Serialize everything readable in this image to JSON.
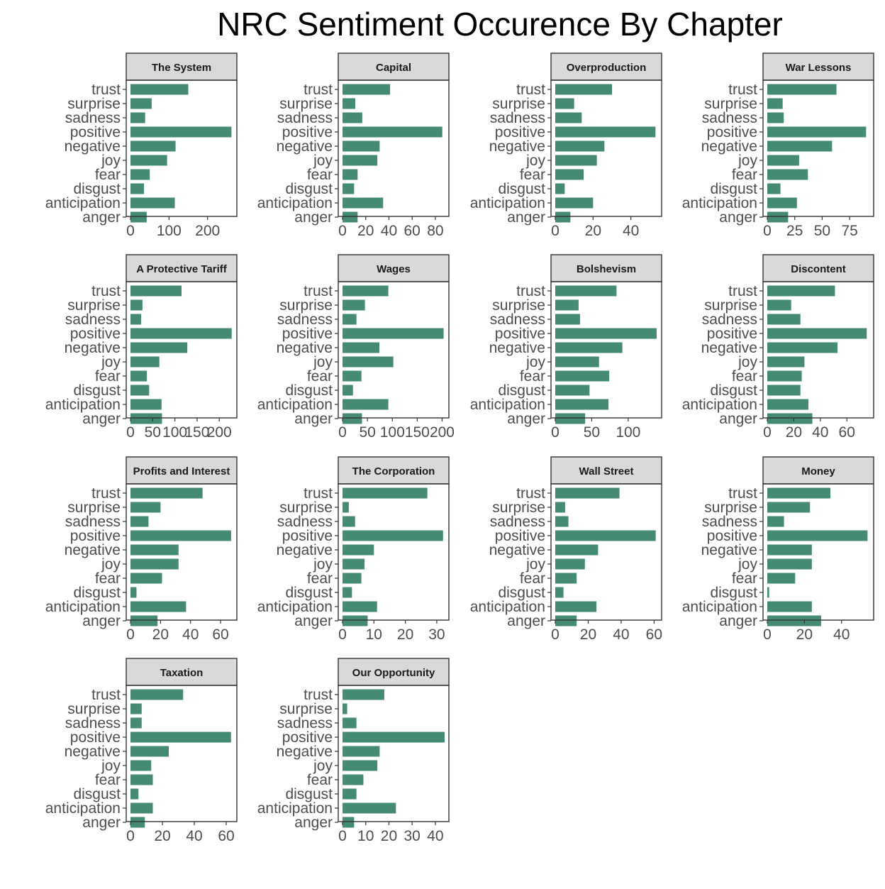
{
  "title": "NRC Sentiment Occurence By Chapter",
  "colors": {
    "bar": "#458b74",
    "strip": "#d9d9d9",
    "axis_text": "#4d4d4d",
    "frame": "#333333"
  },
  "chart_data": {
    "type": "bar",
    "orientation": "horizontal",
    "grid": false,
    "legend": "none",
    "title": "NRC Sentiment Occurence By Chapter",
    "categories": [
      "trust",
      "surprise",
      "sadness",
      "positive",
      "negative",
      "joy",
      "fear",
      "disgust",
      "anticipation",
      "anger"
    ],
    "panels": [
      {
        "name": "The System",
        "xlim": [
          0,
          265
        ],
        "ticks": [
          "0",
          "100",
          "200"
        ],
        "tick_values": [
          0,
          100,
          200
        ],
        "values": [
          150,
          55,
          38,
          262,
          117,
          95,
          50,
          35,
          115,
          42
        ]
      },
      {
        "name": "Capital",
        "xlim": [
          0,
          88
        ],
        "ticks": [
          "0",
          "20",
          "40",
          "60",
          "80"
        ],
        "tick_values": [
          0,
          20,
          40,
          60,
          80
        ],
        "values": [
          41,
          11,
          17,
          86,
          32,
          30,
          13,
          10,
          35,
          13
        ]
      },
      {
        "name": "Overproduction",
        "xlim": [
          0,
          54
        ],
        "ticks": [
          "0",
          "20",
          "40"
        ],
        "tick_values": [
          0,
          20,
          40
        ],
        "values": [
          30,
          10,
          14,
          53,
          26,
          22,
          15,
          5,
          20,
          8
        ]
      },
      {
        "name": "War Lessons",
        "xlim": [
          0,
          93
        ],
        "ticks": [
          "0",
          "25",
          "50",
          "75"
        ],
        "tick_values": [
          0,
          25,
          50,
          75
        ],
        "values": [
          63,
          14,
          15,
          90,
          59,
          29,
          37,
          12,
          27,
          19
        ]
      },
      {
        "name": "A Protective Tariff",
        "xlim": [
          0,
          230
        ],
        "ticks": [
          "0",
          "50",
          "100",
          "150",
          "200"
        ],
        "tick_values": [
          0,
          50,
          100,
          150,
          200
        ],
        "values": [
          115,
          27,
          24,
          228,
          128,
          65,
          37,
          42,
          70,
          71
        ]
      },
      {
        "name": "Wages",
        "xlim": [
          0,
          205
        ],
        "ticks": [
          "0",
          "50",
          "100",
          "150",
          "200"
        ],
        "tick_values": [
          0,
          50,
          100,
          150,
          200
        ],
        "values": [
          92,
          45,
          28,
          203,
          74,
          102,
          38,
          21,
          92,
          39
        ]
      },
      {
        "name": "Bolshevism",
        "xlim": [
          0,
          140
        ],
        "ticks": [
          "0",
          "50",
          "100"
        ],
        "tick_values": [
          0,
          50,
          100
        ],
        "values": [
          84,
          32,
          34,
          139,
          92,
          60,
          74,
          47,
          73,
          41
        ]
      },
      {
        "name": "Discontent",
        "xlim": [
          0,
          77
        ],
        "ticks": [
          "0",
          "20",
          "40",
          "60"
        ],
        "tick_values": [
          0,
          20,
          40,
          60
        ],
        "values": [
          51,
          18,
          25,
          75,
          53,
          28,
          26,
          25,
          31,
          34
        ]
      },
      {
        "name": "Profits and Interest",
        "xlim": [
          0,
          68
        ],
        "ticks": [
          "0",
          "20",
          "40",
          "60"
        ],
        "tick_values": [
          0,
          20,
          40,
          60
        ],
        "values": [
          48,
          20,
          12,
          67,
          32,
          32,
          21,
          4,
          37,
          18
        ]
      },
      {
        "name": "The Corporation",
        "xlim": [
          0,
          32.5
        ],
        "ticks": [
          "0",
          "10",
          "20",
          "30"
        ],
        "tick_values": [
          0,
          10,
          20,
          30
        ],
        "values": [
          27,
          2,
          4,
          32,
          10,
          7,
          6,
          3,
          11,
          8
        ]
      },
      {
        "name": "Wall Street",
        "xlim": [
          0,
          62
        ],
        "ticks": [
          "0",
          "20",
          "40",
          "60"
        ],
        "tick_values": [
          0,
          20,
          40,
          60
        ],
        "values": [
          39,
          6,
          8,
          61,
          26,
          18,
          13,
          5,
          25,
          13
        ]
      },
      {
        "name": "Money",
        "xlim": [
          0,
          55
        ],
        "ticks": [
          "0",
          "20",
          "40"
        ],
        "tick_values": [
          0,
          20,
          40
        ],
        "values": [
          34,
          23,
          9,
          54,
          24,
          24,
          15,
          1,
          24,
          29
        ]
      },
      {
        "name": "Taxation",
        "xlim": [
          0,
          64
        ],
        "ticks": [
          "0",
          "20",
          "40",
          "60"
        ],
        "tick_values": [
          0,
          20,
          40,
          60
        ],
        "values": [
          33,
          7,
          7,
          63,
          24,
          13,
          14,
          5,
          14,
          9
        ]
      },
      {
        "name": "Our Opportunity",
        "xlim": [
          0,
          44
        ],
        "ticks": [
          "0",
          "10",
          "20",
          "30",
          "40"
        ],
        "tick_values": [
          0,
          10,
          20,
          30,
          40
        ],
        "values": [
          18,
          2,
          6,
          44,
          16,
          15,
          9,
          6,
          23,
          5
        ]
      }
    ]
  }
}
